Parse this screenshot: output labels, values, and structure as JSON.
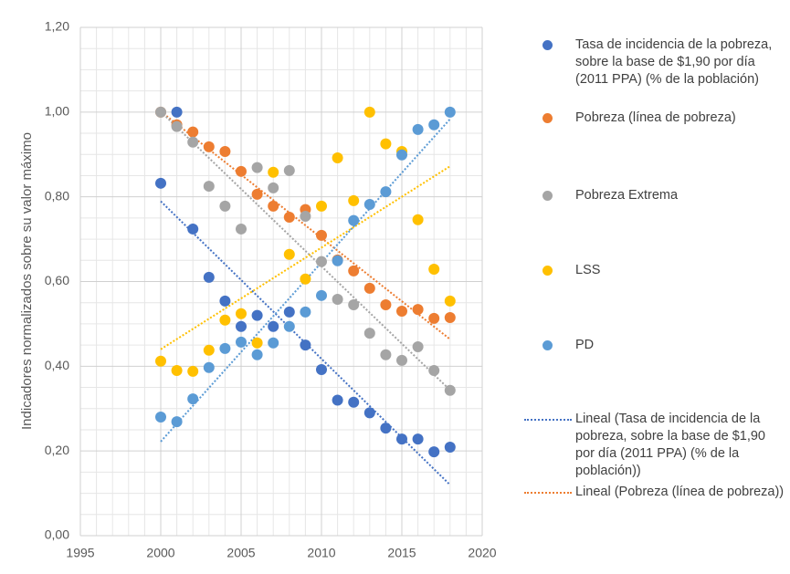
{
  "chart_data": {
    "type": "scatter",
    "y_label": "Indicadores normalizados sobre su valor máximo",
    "xlim": [
      1995,
      2020
    ],
    "xticks": [
      1995,
      2000,
      2005,
      2010,
      2015,
      2020
    ],
    "ylim": [
      0,
      1.2
    ],
    "yticks": [
      {
        "value": 0,
        "label": "0,00"
      },
      {
        "value": 0.2,
        "label": "0,20"
      },
      {
        "value": 0.4,
        "label": "0,40"
      },
      {
        "value": 0.6,
        "label": "0,60"
      },
      {
        "value": 0.8,
        "label": "0,80"
      },
      {
        "value": 1.0,
        "label": "1,00"
      },
      {
        "value": 1.2,
        "label": "1,20"
      }
    ],
    "grid": true,
    "x": [
      2000,
      2001,
      2002,
      2003,
      2004,
      2005,
      2006,
      2007,
      2008,
      2009,
      2010,
      2011,
      2012,
      2013,
      2014,
      2015,
      2016,
      2017,
      2018
    ],
    "series": [
      {
        "name": "Tasa de incidencia de la pobreza, sobre la base de $1,90 por día (2011 PPA) (% de la población)",
        "color": "#4472c4",
        "trendline": "linear",
        "trendline_name": "Lineal (Tasa de incidencia de la pobreza, sobre la base de $1,90 por día (2011 PPA) (% de la población))",
        "values": [
          0.832,
          1.0,
          0.724,
          0.61,
          0.554,
          0.494,
          0.52,
          0.494,
          0.528,
          0.45,
          0.392,
          0.32,
          0.315,
          0.29,
          0.254,
          0.228,
          0.228,
          0.198,
          0.209
        ]
      },
      {
        "name": "Pobreza (línea de pobreza)",
        "color": "#ed7d31",
        "trendline": "linear",
        "trendline_name": "Lineal (Pobreza (línea de pobreza))",
        "values": [
          1.0,
          0.97,
          0.953,
          0.918,
          0.907,
          0.86,
          0.806,
          0.778,
          0.752,
          0.77,
          0.709,
          0.651,
          0.625,
          0.584,
          0.545,
          0.53,
          0.534,
          0.513,
          0.515
        ]
      },
      {
        "name": "Pobreza Extrema",
        "color": "#a5a5a5",
        "trendline": "linear",
        "values": [
          1.0,
          0.966,
          0.929,
          0.825,
          0.778,
          0.724,
          0.869,
          0.821,
          0.862,
          0.754,
          0.647,
          0.558,
          0.545,
          0.478,
          0.427,
          0.414,
          0.446,
          0.39,
          0.343
        ]
      },
      {
        "name": "LSS",
        "color": "#ffc000",
        "trendline": "linear",
        "values": [
          0.412,
          0.39,
          0.388,
          0.438,
          0.509,
          0.524,
          0.455,
          0.858,
          0.664,
          0.606,
          0.778,
          0.892,
          0.791,
          1.0,
          0.925,
          0.907,
          0.746,
          0.629,
          0.554
        ]
      },
      {
        "name": "PD",
        "color": "#5b9bd5",
        "trendline": "linear",
        "values": [
          0.28,
          0.269,
          0.323,
          0.397,
          0.442,
          0.457,
          0.427,
          0.455,
          0.494,
          0.528,
          0.567,
          0.649,
          0.744,
          0.782,
          0.812,
          0.899,
          0.959,
          0.97,
          1.0
        ]
      }
    ]
  }
}
